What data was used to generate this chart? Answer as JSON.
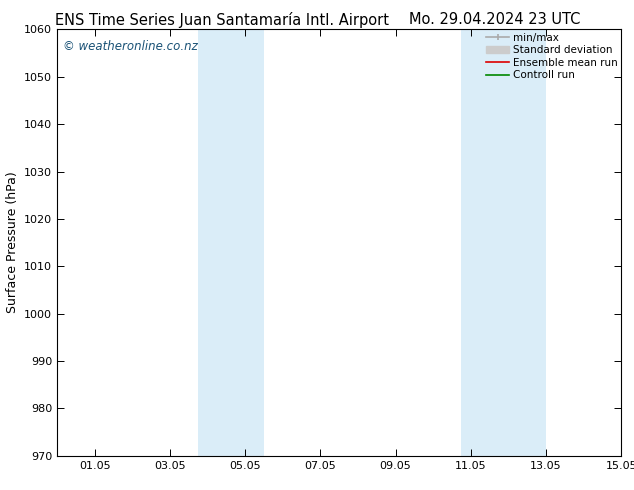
{
  "title_left": "ENS Time Series Juan Santamaría Intl. Airport",
  "title_right": "Mo. 29.04.2024 23 UTC",
  "ylabel": "Surface Pressure (hPa)",
  "ylim": [
    970,
    1060
  ],
  "yticks": [
    970,
    980,
    990,
    1000,
    1010,
    1020,
    1030,
    1040,
    1050,
    1060
  ],
  "xlim": [
    0,
    15
  ],
  "xtick_labels": [
    "01.05",
    "03.05",
    "05.05",
    "07.05",
    "09.05",
    "11.05",
    "13.05",
    "15.05"
  ],
  "xtick_positions": [
    1,
    3,
    5,
    7,
    9,
    11,
    13,
    15
  ],
  "shade_bands": [
    {
      "start": 3.75,
      "end": 5.5,
      "color": "#daedf8"
    },
    {
      "start": 10.75,
      "end": 13.0,
      "color": "#daedf8"
    }
  ],
  "watermark": "© weatheronline.co.nz",
  "watermark_color": "#1a5276",
  "bg_color": "#ffffff",
  "plot_bg_color": "#ffffff",
  "legend_items": [
    {
      "label": "min/max",
      "color": "#aaaaaa",
      "lw": 1.2
    },
    {
      "label": "Standard deviation",
      "color": "#cccccc",
      "lw": 5
    },
    {
      "label": "Ensemble mean run",
      "color": "#dd0000",
      "lw": 1.2
    },
    {
      "label": "Controll run",
      "color": "#008800",
      "lw": 1.2
    }
  ],
  "title_fontsize": 10.5,
  "ylabel_fontsize": 9,
  "tick_fontsize": 8,
  "watermark_fontsize": 8.5,
  "legend_fontsize": 7.5
}
